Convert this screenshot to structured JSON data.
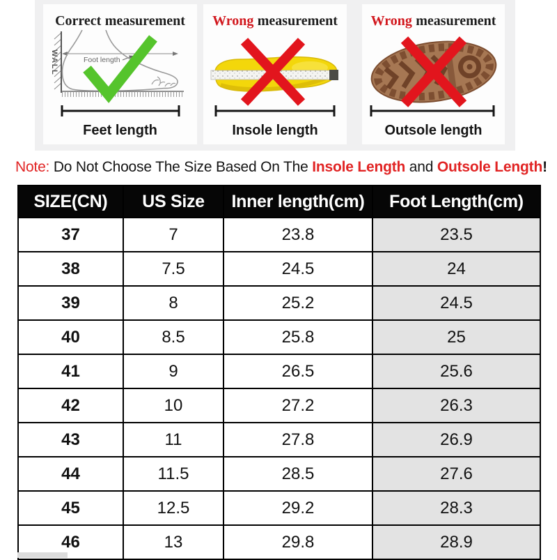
{
  "measurement_guide": {
    "panels": [
      {
        "title_word": "Correct",
        "title_rest": "measurement",
        "caption": "Feet length",
        "icon": "foot-against-wall-diagram",
        "mark": "check",
        "labels": {
          "wall": "WALL",
          "dimension": "Foot length"
        }
      },
      {
        "title_word": "Wrong",
        "title_rest": "measurement",
        "caption": "Insole length",
        "icon": "insole-with-tape",
        "mark": "cross"
      },
      {
        "title_word": "Wrong",
        "title_rest": "measurement",
        "caption": "Outsole length",
        "icon": "boot-outsole",
        "mark": "cross"
      }
    ]
  },
  "note": {
    "label": "Note:",
    "seg1": " Do Not Choose The Size Based On The ",
    "seg2": "Insole Length",
    "seg3": " and ",
    "seg4": "Outsole Length",
    "seg5": "!"
  },
  "size_table": {
    "headers": [
      "SIZE(CN)",
      "US Size",
      "Inner length(cm)",
      "Foot Length(cm)"
    ],
    "rows": [
      [
        "37",
        "7",
        "23.8",
        "23.5"
      ],
      [
        "38",
        "7.5",
        "24.5",
        "24"
      ],
      [
        "39",
        "8",
        "25.2",
        "24.5"
      ],
      [
        "40",
        "8.5",
        "25.8",
        "25"
      ],
      [
        "41",
        "9",
        "26.5",
        "25.6"
      ],
      [
        "42",
        "10",
        "27.2",
        "26.3"
      ],
      [
        "43",
        "11",
        "27.8",
        "26.9"
      ],
      [
        "44",
        "11.5",
        "28.5",
        "27.6"
      ],
      [
        "45",
        "12.5",
        "29.2",
        "28.3"
      ],
      [
        "46",
        "13",
        "29.8",
        "28.9"
      ]
    ]
  },
  "colors": {
    "accent_red": "#e12424",
    "wrong_title_red": "#d2191f",
    "check_green": "#55c42c",
    "cross_red": "#e2151d",
    "insole_yellow": "#f3d70b",
    "outsole_brown": "#a67753",
    "header_bg": "#060606",
    "header_text": "#ffffff",
    "last_column_bg": "#e3e3e3",
    "panel_backdrop": "#f0f0f1"
  }
}
